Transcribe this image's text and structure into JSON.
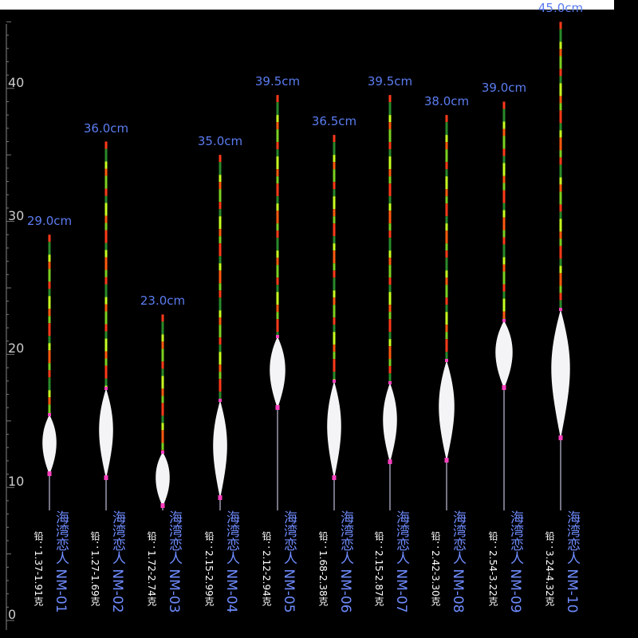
{
  "ruler": {
    "labels": [
      "0",
      "10",
      "20",
      "30",
      "40"
    ]
  },
  "floats": [
    {
      "length": "29.0cm",
      "name": "海湾恋人 NM-01",
      "lead": "铅：1.37-1.91克"
    },
    {
      "length": "36.0cm",
      "name": "海湾恋人 NM-02",
      "lead": "铅：1.27-1.69克"
    },
    {
      "length": "23.0cm",
      "name": "海湾恋人 NM-03",
      "lead": "铅：1.72-2.74克"
    },
    {
      "length": "35.0cm",
      "name": "海湾恋人 NM-04",
      "lead": "铅：2.15-2.99克"
    },
    {
      "length": "39.5cm",
      "name": "海湾恋人 NM-05",
      "lead": "铅：2.12-2.94克"
    },
    {
      "length": "36.5cm",
      "name": "海湾恋人 NM-06",
      "lead": "铅：1.68-2.38克"
    },
    {
      "length": "39.5cm",
      "name": "海湾恋人 NM-07",
      "lead": "铅：2.15-2.87克"
    },
    {
      "length": "38.0cm",
      "name": "海湾恋人 NM-08",
      "lead": "铅：2.42-3.30克"
    },
    {
      "length": "39.0cm",
      "name": "海湾恋人 NM-09",
      "lead": "铅：2.54-3.22克"
    },
    {
      "length": "45.0cm",
      "name": "海湾恋人 NM-10",
      "lead": "铅：3.24-4.32克"
    }
  ]
}
